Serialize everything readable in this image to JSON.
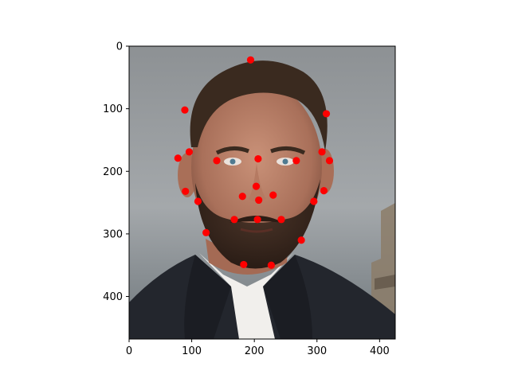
{
  "chart_data": {
    "type": "scatter",
    "title": "",
    "xlabel": "",
    "ylabel": "",
    "xlim": [
      0,
      425
    ],
    "ylim": [
      468,
      0
    ],
    "y_inverted": true,
    "x_ticks": [
      0,
      100,
      200,
      300,
      400
    ],
    "y_ticks": [
      0,
      100,
      200,
      300,
      400
    ],
    "grid": false,
    "legend": "none",
    "marker_color": "#ff0000",
    "background": "photo of a man's face (face-landmark detection overlay)",
    "series": [
      {
        "points": [
          {
            "x": 194,
            "y": 22
          },
          {
            "x": 89,
            "y": 102
          },
          {
            "x": 315,
            "y": 108
          },
          {
            "x": 96,
            "y": 169
          },
          {
            "x": 308,
            "y": 169
          },
          {
            "x": 78,
            "y": 179
          },
          {
            "x": 140,
            "y": 183
          },
          {
            "x": 206,
            "y": 180
          },
          {
            "x": 267,
            "y": 183
          },
          {
            "x": 320,
            "y": 183
          },
          {
            "x": 203,
            "y": 224
          },
          {
            "x": 90,
            "y": 232
          },
          {
            "x": 311,
            "y": 231
          },
          {
            "x": 181,
            "y": 240
          },
          {
            "x": 230,
            "y": 238
          },
          {
            "x": 207,
            "y": 246
          },
          {
            "x": 110,
            "y": 248
          },
          {
            "x": 295,
            "y": 248
          },
          {
            "x": 168,
            "y": 277
          },
          {
            "x": 205,
            "y": 277
          },
          {
            "x": 243,
            "y": 277
          },
          {
            "x": 123,
            "y": 298
          },
          {
            "x": 275,
            "y": 310
          },
          {
            "x": 183,
            "y": 349
          },
          {
            "x": 227,
            "y": 350
          }
        ]
      }
    ]
  }
}
